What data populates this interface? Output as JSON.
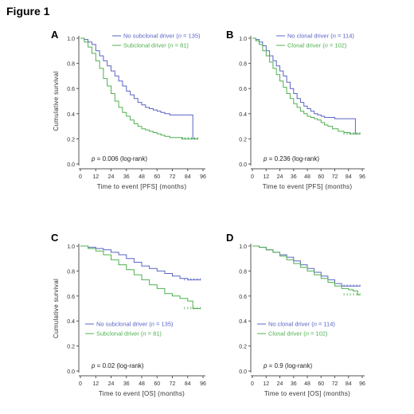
{
  "figure_title": "Figure 1",
  "colors": {
    "blue": "#5a64c4",
    "green": "#4fb04f",
    "axis": "#555555"
  },
  "chart_data": [
    {
      "type": "line",
      "panel_label": "A",
      "xlabel": "Time to event [PFS] (months)",
      "ylabel": "Cumulative survival",
      "xlim": [
        0,
        96
      ],
      "ylim": [
        0,
        1
      ],
      "xticks": [
        0,
        12,
        24,
        36,
        48,
        60,
        72,
        84,
        96
      ],
      "yticks": [
        0.0,
        0.2,
        0.4,
        0.6,
        0.8,
        1.0
      ],
      "grid": false,
      "legend_position": "top-right",
      "annotation": {
        "prefix": "p",
        "text": " = 0.006 (log-rank)"
      },
      "series": [
        {
          "name": "No subclonal driver",
          "n_label": "n",
          "n_text": " = 135)",
          "color": "blue",
          "points": [
            [
              0,
              1
            ],
            [
              3,
              0.99
            ],
            [
              6,
              0.97
            ],
            [
              9,
              0.95
            ],
            [
              12,
              0.9
            ],
            [
              15,
              0.86
            ],
            [
              18,
              0.82
            ],
            [
              21,
              0.78
            ],
            [
              24,
              0.74
            ],
            [
              27,
              0.7
            ],
            [
              30,
              0.66
            ],
            [
              33,
              0.62
            ],
            [
              36,
              0.58
            ],
            [
              39,
              0.55
            ],
            [
              42,
              0.52
            ],
            [
              45,
              0.49
            ],
            [
              48,
              0.47
            ],
            [
              51,
              0.45
            ],
            [
              54,
              0.44
            ],
            [
              57,
              0.43
            ],
            [
              60,
              0.42
            ],
            [
              63,
              0.41
            ],
            [
              66,
              0.4
            ],
            [
              70,
              0.39
            ],
            [
              75,
              0.39
            ],
            [
              80,
              0.39
            ],
            [
              85,
              0.39
            ],
            [
              88,
              0.39
            ],
            [
              88,
              0.2
            ],
            [
              92,
              0.2
            ]
          ]
        },
        {
          "name": "Subclonal driver",
          "n_label": "n",
          "n_text": " = 81)",
          "color": "green",
          "points": [
            [
              0,
              1
            ],
            [
              3,
              0.97
            ],
            [
              6,
              0.93
            ],
            [
              9,
              0.88
            ],
            [
              12,
              0.82
            ],
            [
              15,
              0.76
            ],
            [
              18,
              0.68
            ],
            [
              21,
              0.62
            ],
            [
              24,
              0.56
            ],
            [
              27,
              0.5
            ],
            [
              30,
              0.45
            ],
            [
              33,
              0.41
            ],
            [
              36,
              0.38
            ],
            [
              39,
              0.35
            ],
            [
              42,
              0.32
            ],
            [
              45,
              0.3
            ],
            [
              48,
              0.28
            ],
            [
              51,
              0.27
            ],
            [
              54,
              0.26
            ],
            [
              57,
              0.25
            ],
            [
              60,
              0.24
            ],
            [
              63,
              0.23
            ],
            [
              66,
              0.22
            ],
            [
              70,
              0.21
            ],
            [
              75,
              0.21
            ],
            [
              80,
              0.2
            ],
            [
              85,
              0.2
            ],
            [
              92,
              0.2
            ]
          ]
        }
      ]
    },
    {
      "type": "line",
      "panel_label": "B",
      "xlabel": "Time to event [PFS] (months)",
      "ylabel": "",
      "xlim": [
        0,
        96
      ],
      "ylim": [
        0,
        1
      ],
      "xticks": [
        0,
        12,
        24,
        36,
        48,
        60,
        72,
        84,
        96
      ],
      "yticks": [
        0.0,
        0.2,
        0.4,
        0.6,
        0.8,
        1.0
      ],
      "grid": false,
      "legend_position": "top-right",
      "annotation": {
        "prefix": "p",
        "text": " = 0.236 (log-rank)"
      },
      "series": [
        {
          "name": "No clonal driver",
          "n_label": "n",
          "n_text": " = 114)",
          "color": "blue",
          "points": [
            [
              0,
              1
            ],
            [
              3,
              0.99
            ],
            [
              6,
              0.97
            ],
            [
              9,
              0.94
            ],
            [
              12,
              0.9
            ],
            [
              15,
              0.86
            ],
            [
              18,
              0.82
            ],
            [
              21,
              0.78
            ],
            [
              24,
              0.74
            ],
            [
              27,
              0.7
            ],
            [
              30,
              0.65
            ],
            [
              33,
              0.6
            ],
            [
              36,
              0.56
            ],
            [
              39,
              0.52
            ],
            [
              42,
              0.49
            ],
            [
              45,
              0.46
            ],
            [
              48,
              0.44
            ],
            [
              51,
              0.42
            ],
            [
              54,
              0.4
            ],
            [
              57,
              0.39
            ],
            [
              60,
              0.38
            ],
            [
              63,
              0.37
            ],
            [
              66,
              0.37
            ],
            [
              72,
              0.36
            ],
            [
              78,
              0.36
            ],
            [
              84,
              0.36
            ],
            [
              90,
              0.36
            ],
            [
              90,
              0.24
            ],
            [
              94,
              0.24
            ]
          ]
        },
        {
          "name": "Clonal driver",
          "n_label": "n",
          "n_text": " = 102)",
          "color": "green",
          "points": [
            [
              0,
              1
            ],
            [
              3,
              0.98
            ],
            [
              6,
              0.95
            ],
            [
              9,
              0.9
            ],
            [
              12,
              0.86
            ],
            [
              15,
              0.81
            ],
            [
              18,
              0.76
            ],
            [
              21,
              0.71
            ],
            [
              24,
              0.66
            ],
            [
              27,
              0.61
            ],
            [
              30,
              0.56
            ],
            [
              33,
              0.52
            ],
            [
              36,
              0.48
            ],
            [
              39,
              0.45
            ],
            [
              42,
              0.42
            ],
            [
              45,
              0.4
            ],
            [
              48,
              0.38
            ],
            [
              51,
              0.37
            ],
            [
              54,
              0.36
            ],
            [
              57,
              0.35
            ],
            [
              60,
              0.33
            ],
            [
              63,
              0.31
            ],
            [
              66,
              0.3
            ],
            [
              70,
              0.28
            ],
            [
              75,
              0.26
            ],
            [
              80,
              0.25
            ],
            [
              85,
              0.24
            ],
            [
              94,
              0.24
            ]
          ]
        }
      ]
    },
    {
      "type": "line",
      "panel_label": "C",
      "xlabel": "Time to event [OS] (months)",
      "ylabel": "Cumulative survival",
      "xlim": [
        0,
        96
      ],
      "ylim": [
        0,
        1
      ],
      "xticks": [
        0,
        12,
        24,
        36,
        48,
        60,
        72,
        84,
        96
      ],
      "yticks": [
        0.0,
        0.2,
        0.4,
        0.6,
        0.8,
        1.0
      ],
      "grid": false,
      "legend_position": "bottom-left",
      "annotation": {
        "prefix": "p",
        "text": " = 0.02 (log-rank)"
      },
      "series": [
        {
          "name": "No subclonal driver",
          "n_label": "n",
          "n_text": " = 135)",
          "color": "blue",
          "points": [
            [
              0,
              1
            ],
            [
              6,
              0.99
            ],
            [
              12,
              0.98
            ],
            [
              18,
              0.97
            ],
            [
              24,
              0.95
            ],
            [
              30,
              0.93
            ],
            [
              36,
              0.9
            ],
            [
              42,
              0.87
            ],
            [
              48,
              0.84
            ],
            [
              54,
              0.82
            ],
            [
              60,
              0.8
            ],
            [
              66,
              0.78
            ],
            [
              72,
              0.76
            ],
            [
              78,
              0.74
            ],
            [
              84,
              0.73
            ],
            [
              90,
              0.73
            ],
            [
              94,
              0.73
            ]
          ]
        },
        {
          "name": "Subclonal driver",
          "n_label": "n",
          "n_text": " = 81)",
          "color": "green",
          "points": [
            [
              0,
              1
            ],
            [
              6,
              0.98
            ],
            [
              12,
              0.96
            ],
            [
              18,
              0.93
            ],
            [
              24,
              0.89
            ],
            [
              30,
              0.85
            ],
            [
              36,
              0.81
            ],
            [
              42,
              0.77
            ],
            [
              48,
              0.73
            ],
            [
              54,
              0.69
            ],
            [
              60,
              0.66
            ],
            [
              66,
              0.62
            ],
            [
              72,
              0.6
            ],
            [
              78,
              0.58
            ],
            [
              84,
              0.56
            ],
            [
              88,
              0.56
            ],
            [
              88,
              0.5
            ],
            [
              94,
              0.5
            ]
          ]
        }
      ]
    },
    {
      "type": "line",
      "panel_label": "D",
      "xlabel": "Time to event [OS] (months)",
      "ylabel": "",
      "xlim": [
        0,
        96
      ],
      "ylim": [
        0,
        1
      ],
      "xticks": [
        0,
        12,
        24,
        36,
        48,
        60,
        72,
        84,
        96
      ],
      "yticks": [
        0.0,
        0.2,
        0.4,
        0.6,
        0.8,
        1.0
      ],
      "grid": false,
      "legend_position": "bottom-left",
      "annotation": {
        "prefix": "p",
        "text": " = 0.9 (log-rank)"
      },
      "series": [
        {
          "name": "No clonal driver",
          "n_label": "n",
          "n_text": " = 114)",
          "color": "blue",
          "points": [
            [
              0,
              1
            ],
            [
              6,
              0.99
            ],
            [
              12,
              0.97
            ],
            [
              18,
              0.95
            ],
            [
              24,
              0.93
            ],
            [
              30,
              0.91
            ],
            [
              36,
              0.88
            ],
            [
              42,
              0.85
            ],
            [
              48,
              0.82
            ],
            [
              54,
              0.79
            ],
            [
              60,
              0.76
            ],
            [
              66,
              0.73
            ],
            [
              72,
              0.7
            ],
            [
              78,
              0.68
            ],
            [
              84,
              0.68
            ],
            [
              90,
              0.68
            ],
            [
              94,
              0.68
            ]
          ]
        },
        {
          "name": "Clonal driver",
          "n_label": "n",
          "n_text": " = 102)",
          "color": "green",
          "points": [
            [
              0,
              1
            ],
            [
              6,
              0.99
            ],
            [
              12,
              0.97
            ],
            [
              18,
              0.95
            ],
            [
              24,
              0.92
            ],
            [
              30,
              0.89
            ],
            [
              36,
              0.86
            ],
            [
              42,
              0.83
            ],
            [
              48,
              0.8
            ],
            [
              54,
              0.77
            ],
            [
              60,
              0.74
            ],
            [
              66,
              0.71
            ],
            [
              72,
              0.68
            ],
            [
              78,
              0.66
            ],
            [
              84,
              0.65
            ],
            [
              88,
              0.64
            ],
            [
              92,
              0.61
            ],
            [
              94,
              0.61
            ]
          ]
        }
      ]
    }
  ]
}
